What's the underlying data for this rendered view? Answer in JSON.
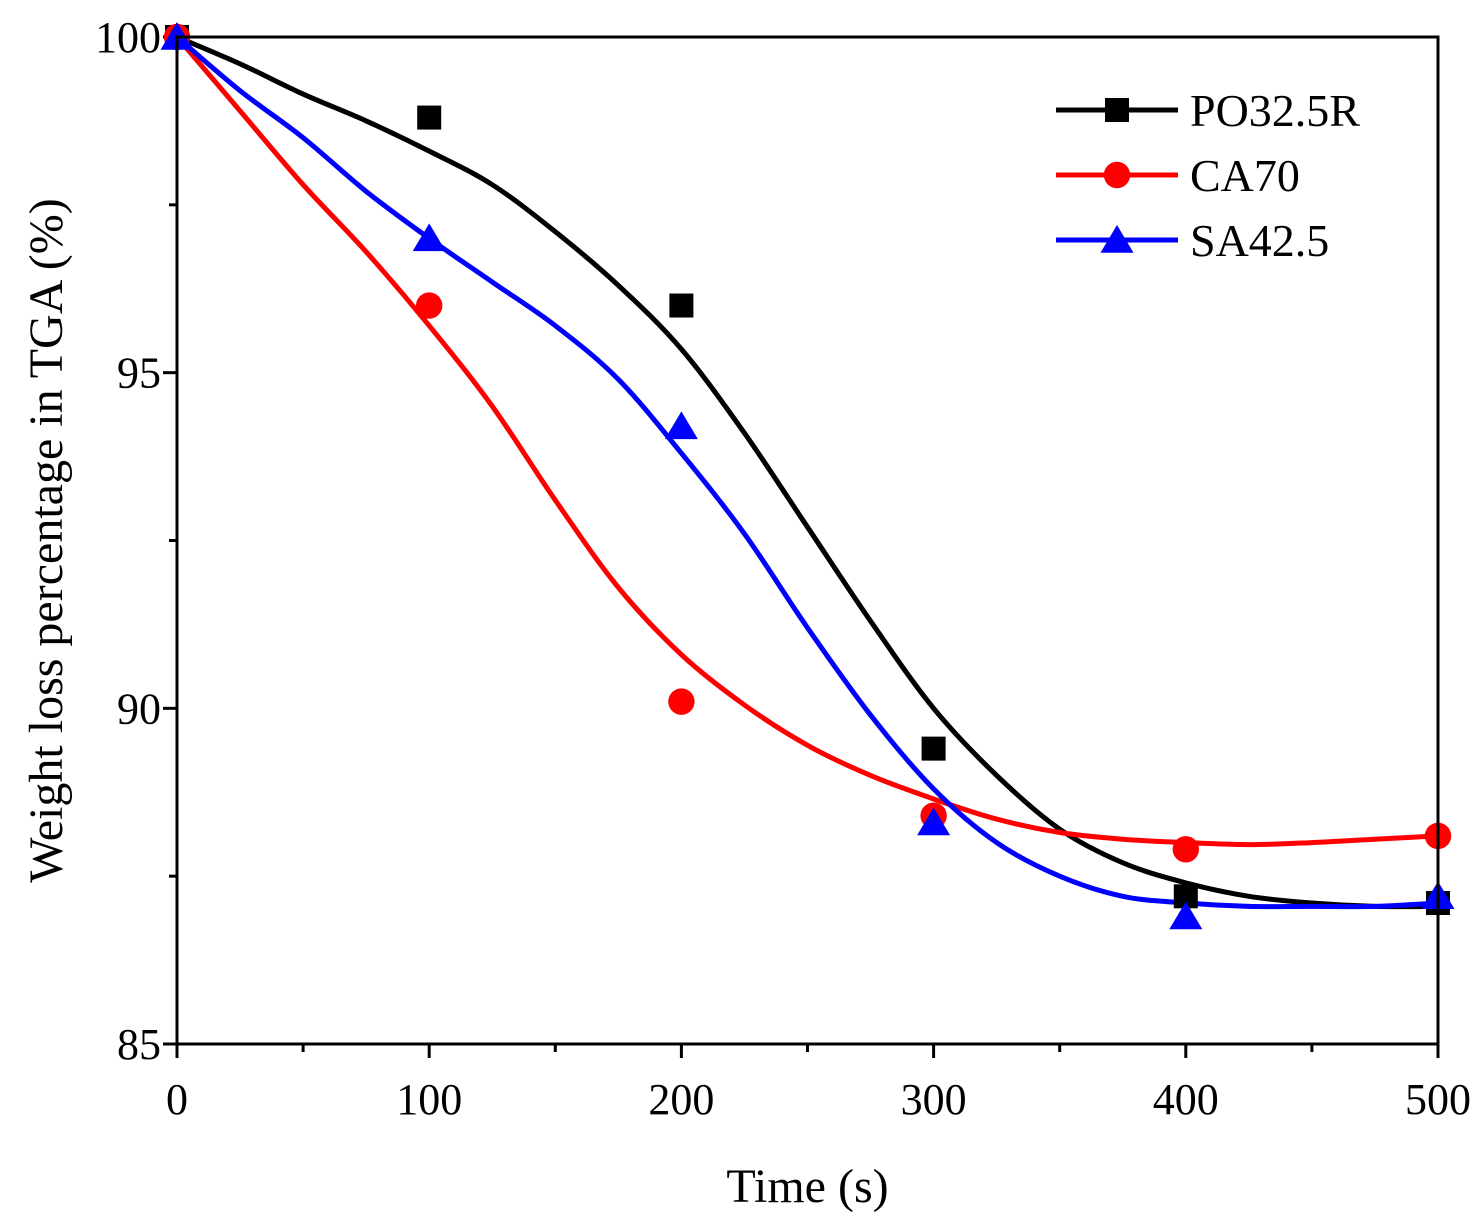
{
  "chart_data": {
    "type": "scatter",
    "title": "",
    "xlabel": "Time (s)",
    "ylabel": "Weight loss percentage in TGA (%)",
    "xlim": [
      0,
      500
    ],
    "ylim": [
      85,
      100
    ],
    "xticks": [
      0,
      100,
      200,
      300,
      400,
      500
    ],
    "yticks": [
      85,
      90,
      95,
      100
    ],
    "grid": false,
    "legend_position": "top-right",
    "series": [
      {
        "name": "PO32.5R",
        "color": "#000000",
        "marker": "square",
        "x": [
          0,
          100,
          200,
          300,
          400,
          500
        ],
        "y": [
          100,
          98.8,
          96.0,
          89.4,
          87.2,
          87.1
        ],
        "fit_x": [
          0,
          25,
          50,
          75,
          100,
          125,
          150,
          175,
          200,
          225,
          250,
          275,
          300,
          325,
          350,
          375,
          400,
          425,
          450,
          475,
          500
        ],
        "fit_y": [
          100,
          99.6,
          99.15,
          98.75,
          98.3,
          97.8,
          97.1,
          96.3,
          95.35,
          94.1,
          92.7,
          91.3,
          90.0,
          89.0,
          88.2,
          87.7,
          87.4,
          87.2,
          87.1,
          87.05,
          87.05
        ]
      },
      {
        "name": "CA70",
        "color": "#ff0000",
        "marker": "circle",
        "x": [
          0,
          100,
          200,
          300,
          400,
          500
        ],
        "y": [
          100,
          96.0,
          90.1,
          88.4,
          87.9,
          88.1
        ],
        "fit_x": [
          0,
          25,
          50,
          75,
          100,
          125,
          150,
          175,
          200,
          225,
          250,
          275,
          300,
          325,
          350,
          375,
          400,
          425,
          450,
          475,
          500
        ],
        "fit_y": [
          100,
          98.9,
          97.8,
          96.8,
          95.7,
          94.5,
          93.1,
          91.8,
          90.8,
          90.05,
          89.45,
          89.0,
          88.65,
          88.35,
          88.15,
          88.05,
          88.0,
          87.97,
          88.0,
          88.05,
          88.1
        ]
      },
      {
        "name": "SA42.5",
        "color": "#0000ff",
        "marker": "triangle",
        "x": [
          0,
          100,
          200,
          300,
          400,
          500
        ],
        "y": [
          100,
          97.0,
          94.2,
          88.3,
          86.9,
          87.2
        ],
        "fit_x": [
          0,
          25,
          50,
          75,
          100,
          125,
          150,
          175,
          200,
          225,
          250,
          275,
          300,
          325,
          350,
          375,
          400,
          425,
          450,
          475,
          500
        ],
        "fit_y": [
          100,
          99.2,
          98.5,
          97.7,
          97.0,
          96.35,
          95.7,
          94.9,
          93.8,
          92.6,
          91.2,
          89.9,
          88.8,
          88.0,
          87.5,
          87.2,
          87.1,
          87.05,
          87.05,
          87.05,
          87.1
        ]
      }
    ]
  }
}
